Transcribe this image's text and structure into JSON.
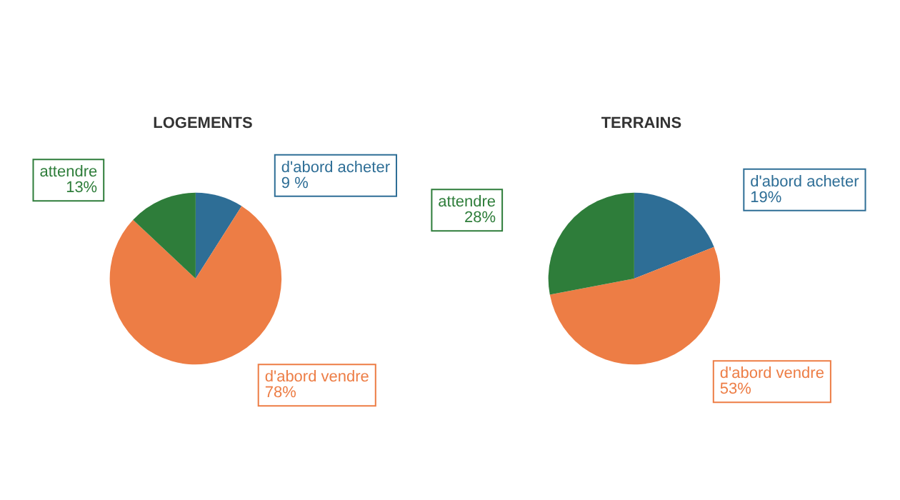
{
  "chart_data": [
    {
      "type": "pie",
      "title": "LOGEMENTS",
      "categories": [
        "d'abord acheter",
        "d'abord vendre",
        "attendre"
      ],
      "values": [
        9,
        78,
        13
      ],
      "value_labels": [
        "9 %",
        "78%",
        "13%"
      ],
      "colors": [
        "#2e6e96",
        "#ed7d45",
        "#2e7d3a"
      ]
    },
    {
      "type": "pie",
      "title": "TERRAINS",
      "categories": [
        "d'abord acheter",
        "d'abord vendre",
        "attendre"
      ],
      "values": [
        19,
        53,
        28
      ],
      "value_labels": [
        "19%",
        "53%",
        "28%"
      ],
      "colors": [
        "#2e6e96",
        "#ed7d45",
        "#2e7d3a"
      ]
    }
  ]
}
